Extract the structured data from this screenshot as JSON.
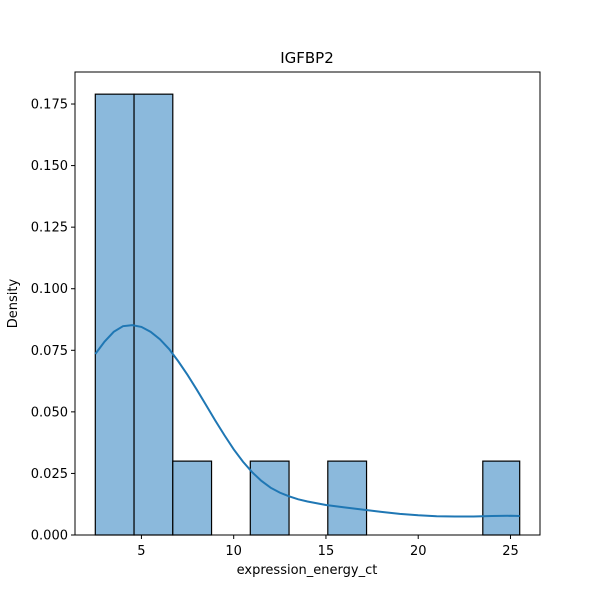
{
  "chart_data": {
    "type": "bar",
    "title": "IGFBP2",
    "xlabel": "expression_energy_ct",
    "ylabel": "Density",
    "xlim": [
      1.4,
      26.6
    ],
    "ylim": [
      0,
      0.188
    ],
    "grid": false,
    "legend": "none",
    "bins": [
      {
        "x0": 2.5,
        "x1": 4.6,
        "value": 0.179
      },
      {
        "x0": 4.6,
        "x1": 6.7,
        "value": 0.179
      },
      {
        "x0": 6.7,
        "x1": 8.8,
        "value": 0.03
      },
      {
        "x0": 8.8,
        "x1": 10.9,
        "value": 0.0
      },
      {
        "x0": 10.9,
        "x1": 13.0,
        "value": 0.03
      },
      {
        "x0": 13.0,
        "x1": 15.1,
        "value": 0.0
      },
      {
        "x0": 15.1,
        "x1": 17.2,
        "value": 0.03
      },
      {
        "x0": 17.2,
        "x1": 19.3,
        "value": 0.0
      },
      {
        "x0": 19.3,
        "x1": 21.4,
        "value": 0.0
      },
      {
        "x0": 21.4,
        "x1": 23.5,
        "value": 0.0
      },
      {
        "x0": 23.5,
        "x1": 25.5,
        "value": 0.03
      }
    ],
    "kde": {
      "x": [
        2.5,
        3.0,
        3.5,
        4.0,
        4.5,
        5.0,
        5.5,
        6.0,
        6.5,
        7.0,
        7.5,
        8.0,
        8.5,
        9.0,
        9.5,
        10.0,
        10.5,
        11.0,
        11.5,
        12.0,
        12.5,
        13.0,
        13.5,
        14.0,
        15.0,
        16.0,
        17.0,
        18.0,
        19.0,
        20.0,
        21.0,
        22.0,
        23.0,
        24.0,
        25.0,
        25.5
      ],
      "y": [
        0.0735,
        0.0785,
        0.0825,
        0.0848,
        0.0852,
        0.0845,
        0.0825,
        0.0795,
        0.0755,
        0.0705,
        0.065,
        0.059,
        0.0528,
        0.0465,
        0.0405,
        0.0348,
        0.0298,
        0.0255,
        0.022,
        0.0192,
        0.0172,
        0.0157,
        0.0145,
        0.0136,
        0.0122,
        0.0112,
        0.0103,
        0.0094,
        0.0086,
        0.008,
        0.0076,
        0.0075,
        0.0075,
        0.0077,
        0.0078,
        0.0077
      ]
    },
    "xticks": [
      {
        "value": 5,
        "label": "5"
      },
      {
        "value": 10,
        "label": "10"
      },
      {
        "value": 15,
        "label": "15"
      },
      {
        "value": 20,
        "label": "20"
      },
      {
        "value": 25,
        "label": "25"
      }
    ],
    "yticks": [
      {
        "value": 0,
        "label": "0.000"
      },
      {
        "value": 0.025,
        "label": "0.025"
      },
      {
        "value": 0.05,
        "label": "0.050"
      },
      {
        "value": 0.075,
        "label": "0.075"
      },
      {
        "value": 0.1,
        "label": "0.100"
      },
      {
        "value": 0.125,
        "label": "0.125"
      },
      {
        "value": 0.15,
        "label": "0.150"
      },
      {
        "value": 0.175,
        "label": "0.175"
      }
    ],
    "colors": {
      "bar_fill": "#8bb9dc",
      "bar_edge": "#000000",
      "kde_line": "#1f77b4"
    }
  }
}
